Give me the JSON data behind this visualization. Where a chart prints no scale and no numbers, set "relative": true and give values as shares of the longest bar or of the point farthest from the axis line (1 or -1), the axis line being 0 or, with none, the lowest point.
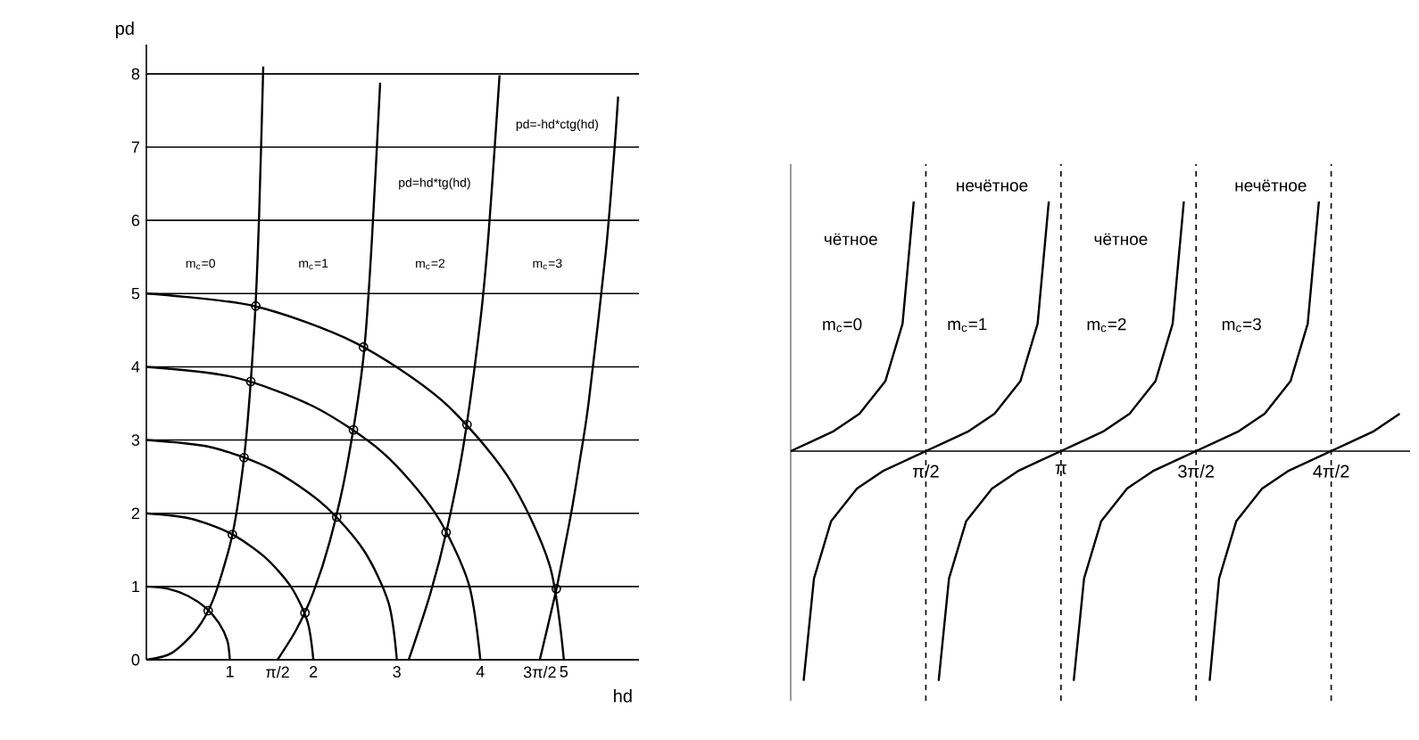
{
  "chart_data": [
    {
      "type": "line",
      "xlabel": "hd",
      "ylabel": "pd",
      "xlim": [
        0,
        5.9
      ],
      "ylim": [
        0,
        8.4
      ],
      "grid": "y",
      "xticks": [
        1,
        {
          "value": 1.571,
          "label": "π/2"
        },
        2,
        3,
        4,
        {
          "value": 4.712,
          "label": "3π/2"
        },
        5
      ],
      "yticks": [
        0,
        1,
        2,
        3,
        4,
        5,
        6,
        7,
        8
      ],
      "series": [
        {
          "color": "#000000",
          "x": [
            1,
            0.97,
            0.87,
            0.71,
            0.5,
            0.26,
            0
          ],
          "values": [
            0,
            0.26,
            0.5,
            0.71,
            0.87,
            0.97,
            1
          ]
        },
        {
          "color": "#000000",
          "x": [
            2,
            1.93,
            1.73,
            1.41,
            1,
            0.52,
            0
          ],
          "values": [
            0,
            0.52,
            1,
            1.41,
            1.73,
            1.93,
            2
          ]
        },
        {
          "color": "#000000",
          "x": [
            3,
            2.9,
            2.6,
            2.12,
            1.5,
            0.78,
            0
          ],
          "values": [
            0,
            0.78,
            1.5,
            2.12,
            2.6,
            2.9,
            3
          ]
        },
        {
          "color": "#000000",
          "x": [
            4,
            3.86,
            3.46,
            2.83,
            2,
            1.04,
            0
          ],
          "values": [
            0,
            1.04,
            2,
            2.83,
            3.46,
            3.86,
            4
          ]
        },
        {
          "color": "#000000",
          "x": [
            5,
            4.83,
            4.33,
            3.54,
            2.5,
            1.29,
            0
          ],
          "values": [
            0,
            1.29,
            2.5,
            3.54,
            4.33,
            4.83,
            5
          ]
        },
        {
          "color": "#000000",
          "x": [
            0,
            0.3,
            0.6,
            0.8,
            1.0,
            1.1,
            1.2,
            1.3,
            1.35,
            1.4
          ],
          "values": [
            0,
            0.09,
            0.41,
            0.82,
            1.56,
            2.16,
            3.09,
            4.68,
            6.06,
            8.1
          ]
        },
        {
          "color": "#000000",
          "x": [
            1.571,
            1.8,
            2.0,
            2.2,
            2.4,
            2.6,
            2.7,
            2.8
          ],
          "values": [
            0,
            0.42,
            0.92,
            1.63,
            2.63,
            4.13,
            5.71,
            7.88
          ]
        },
        {
          "color": "#000000",
          "x": [
            3.142,
            3.4,
            3.6,
            3.8,
            4.0,
            4.1,
            4.2,
            4.23
          ],
          "values": [
            0,
            0.9,
            1.78,
            2.94,
            4.63,
            5.84,
            7.47,
            7.98
          ]
        },
        {
          "color": "#000000",
          "x": [
            4.712,
            4.9,
            5.0,
            5.1,
            5.2,
            5.3,
            5.5,
            5.6,
            5.65
          ],
          "values": [
            0,
            0.91,
            1.48,
            2.08,
            2.78,
            3.54,
            5.54,
            6.88,
            7.69
          ]
        },
        {
          "type": "scatter",
          "marker": "circle",
          "color": "#000000",
          "x": [
            0.74,
            1.03,
            1.9,
            1.17,
            2.28,
            1.25,
            2.48,
            3.59,
            1.31,
            2.6,
            3.84,
            4.91
          ],
          "values": [
            0.67,
            1.71,
            0.64,
            2.76,
            1.95,
            3.8,
            3.14,
            1.74,
            4.83,
            4.27,
            3.21,
            0.97
          ]
        }
      ],
      "annotations": [
        "pd=-hd*ctg(hd)",
        "pd=hd*tg(hd)",
        "m$_{c}$=0",
        "m$_{c}$=1",
        "m$_{c}$=2",
        "m$_{c}$=3"
      ]
    },
    {
      "type": "line",
      "relative": true,
      "xlim": [
        0,
        7.2
      ],
      "tick_labels": "x",
      "xticks": [
        {
          "value": 1.571,
          "label": "π/2"
        },
        {
          "value": 3.142,
          "label": "π"
        },
        {
          "value": 4.712,
          "label": "3π/2"
        },
        {
          "value": 6.283,
          "label": "4π/2"
        }
      ],
      "series": [
        {
          "color": "#000000",
          "x": [
            0,
            0.25,
            0.5,
            0.8,
            1.1,
            1.3,
            1.43
          ],
          "values": [
            0,
            0.04,
            0.08,
            0.15,
            0.28,
            0.51,
            1
          ]
        },
        {
          "color": "#000000",
          "x": [
            0.15,
            0.27,
            0.47,
            0.77,
            1.07,
            1.32,
            1.57,
            1.82,
            2.07,
            2.37,
            2.67,
            2.87,
            3.0
          ],
          "values": [
            -0.92,
            -0.51,
            -0.28,
            -0.15,
            -0.08,
            -0.04,
            0,
            0.04,
            0.08,
            0.15,
            0.28,
            0.51,
            1
          ]
        },
        {
          "color": "#000000",
          "x": [
            1.72,
            1.84,
            2.04,
            2.34,
            2.64,
            2.89,
            3.14,
            3.39,
            3.64,
            3.94,
            4.24,
            4.44,
            4.57
          ],
          "values": [
            -0.92,
            -0.51,
            -0.28,
            -0.15,
            -0.08,
            -0.04,
            0,
            0.04,
            0.08,
            0.15,
            0.28,
            0.51,
            1
          ]
        },
        {
          "color": "#000000",
          "x": [
            3.29,
            3.41,
            3.61,
            3.91,
            4.21,
            4.46,
            4.71,
            4.96,
            5.21,
            5.51,
            5.81,
            6.01,
            6.14
          ],
          "values": [
            -0.92,
            -0.51,
            -0.28,
            -0.15,
            -0.08,
            -0.04,
            0,
            0.04,
            0.08,
            0.15,
            0.28,
            0.51,
            1
          ]
        },
        {
          "color": "#000000",
          "x": [
            4.87,
            4.98,
            5.18,
            5.48,
            5.78,
            6.03,
            6.28,
            6.53,
            6.78,
            7.08
          ],
          "values": [
            -0.92,
            -0.51,
            -0.28,
            -0.15,
            -0.08,
            -0.04,
            0,
            0.04,
            0.08,
            0.15
          ]
        }
      ],
      "ref_lines": [
        {
          "axis": "x",
          "value": 1.571,
          "line_style": "dashed",
          "color": "#000000"
        },
        {
          "axis": "x",
          "value": 3.142,
          "line_style": "dashed",
          "color": "#000000"
        },
        {
          "axis": "x",
          "value": 4.712,
          "line_style": "dashed",
          "color": "#000000"
        },
        {
          "axis": "x",
          "value": 6.283,
          "line_style": "dashed",
          "color": "#000000"
        }
      ],
      "annotations": [
        "чётное",
        "нечётное",
        "чётное",
        "нечётное",
        "m$_{c}$=0",
        "m$_{c}$=1",
        "m$_{c}$=2",
        "m$_{c}$=3"
      ]
    }
  ]
}
